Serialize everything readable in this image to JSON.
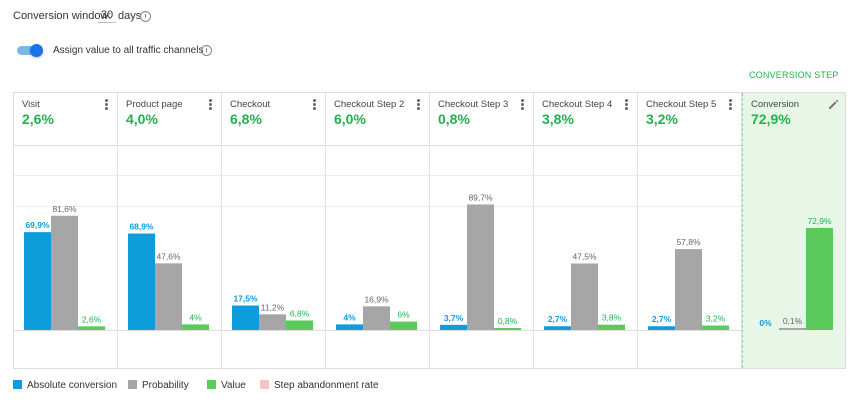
{
  "controls": {
    "conversion_window_label": "Conversion window:",
    "conversion_window_value": "30",
    "conversion_window_unit": "days",
    "assign_value_label": "Assign value to all traffic channels",
    "assign_value_enabled": true,
    "info_glyph": "i"
  },
  "conversion_step_header": "CONVERSION STEP",
  "colors": {
    "absolute": "#0d9ddb",
    "probability": "#a6a6a6",
    "value": "#5bc95b",
    "abandonment": "#f4c4c4",
    "accent_green": "#22b14c"
  },
  "steps": [
    {
      "name": "Visit",
      "pct": "2,6%"
    },
    {
      "name": "Product page",
      "pct": "4,0%"
    },
    {
      "name": "Checkout",
      "pct": "6,8%"
    },
    {
      "name": "Checkout Step 2",
      "pct": "6,0%"
    },
    {
      "name": "Checkout Step 3",
      "pct": "0,8%"
    },
    {
      "name": "Checkout Step 4",
      "pct": "3,8%"
    },
    {
      "name": "Checkout Step 5",
      "pct": "3,2%"
    },
    {
      "name": "Conversion",
      "pct": "72,9%"
    }
  ],
  "chart_data": {
    "type": "bar",
    "categories": [
      "Visit",
      "Product page",
      "Checkout",
      "Checkout Step 2",
      "Checkout Step 3",
      "Checkout Step 4",
      "Checkout Step 5",
      "Conversion"
    ],
    "series": [
      {
        "name": "Absolute conversion",
        "values": [
          69.9,
          68.9,
          17.5,
          4,
          3.7,
          2.7,
          2.7,
          0
        ],
        "labels": [
          "69,9%",
          "68,9%",
          "17,5%",
          "4%",
          "3,7%",
          "2,7%",
          "2,7%",
          "0%"
        ]
      },
      {
        "name": "Probability",
        "values": [
          81.6,
          47.6,
          11.2,
          16.9,
          89.7,
          47.5,
          57.8,
          0.1
        ],
        "labels": [
          "81,6%",
          "47,6%",
          "11,2%",
          "16,9%",
          "89,7%",
          "47,5%",
          "57,8%",
          "0,1%"
        ]
      },
      {
        "name": "Value",
        "values": [
          2.6,
          4,
          6.8,
          6,
          0.8,
          3.8,
          3.2,
          72.9
        ],
        "labels": [
          "2,6%",
          "4%",
          "6,8%",
          "6%",
          "0,8%",
          "3,8%",
          "3,2%",
          "72,9%"
        ]
      }
    ],
    "legend": [
      "Absolute conversion",
      "Probability",
      "Value",
      "Step abandonment rate"
    ],
    "legend_position": "bottom-left",
    "ylim": [
      0,
      100
    ]
  }
}
